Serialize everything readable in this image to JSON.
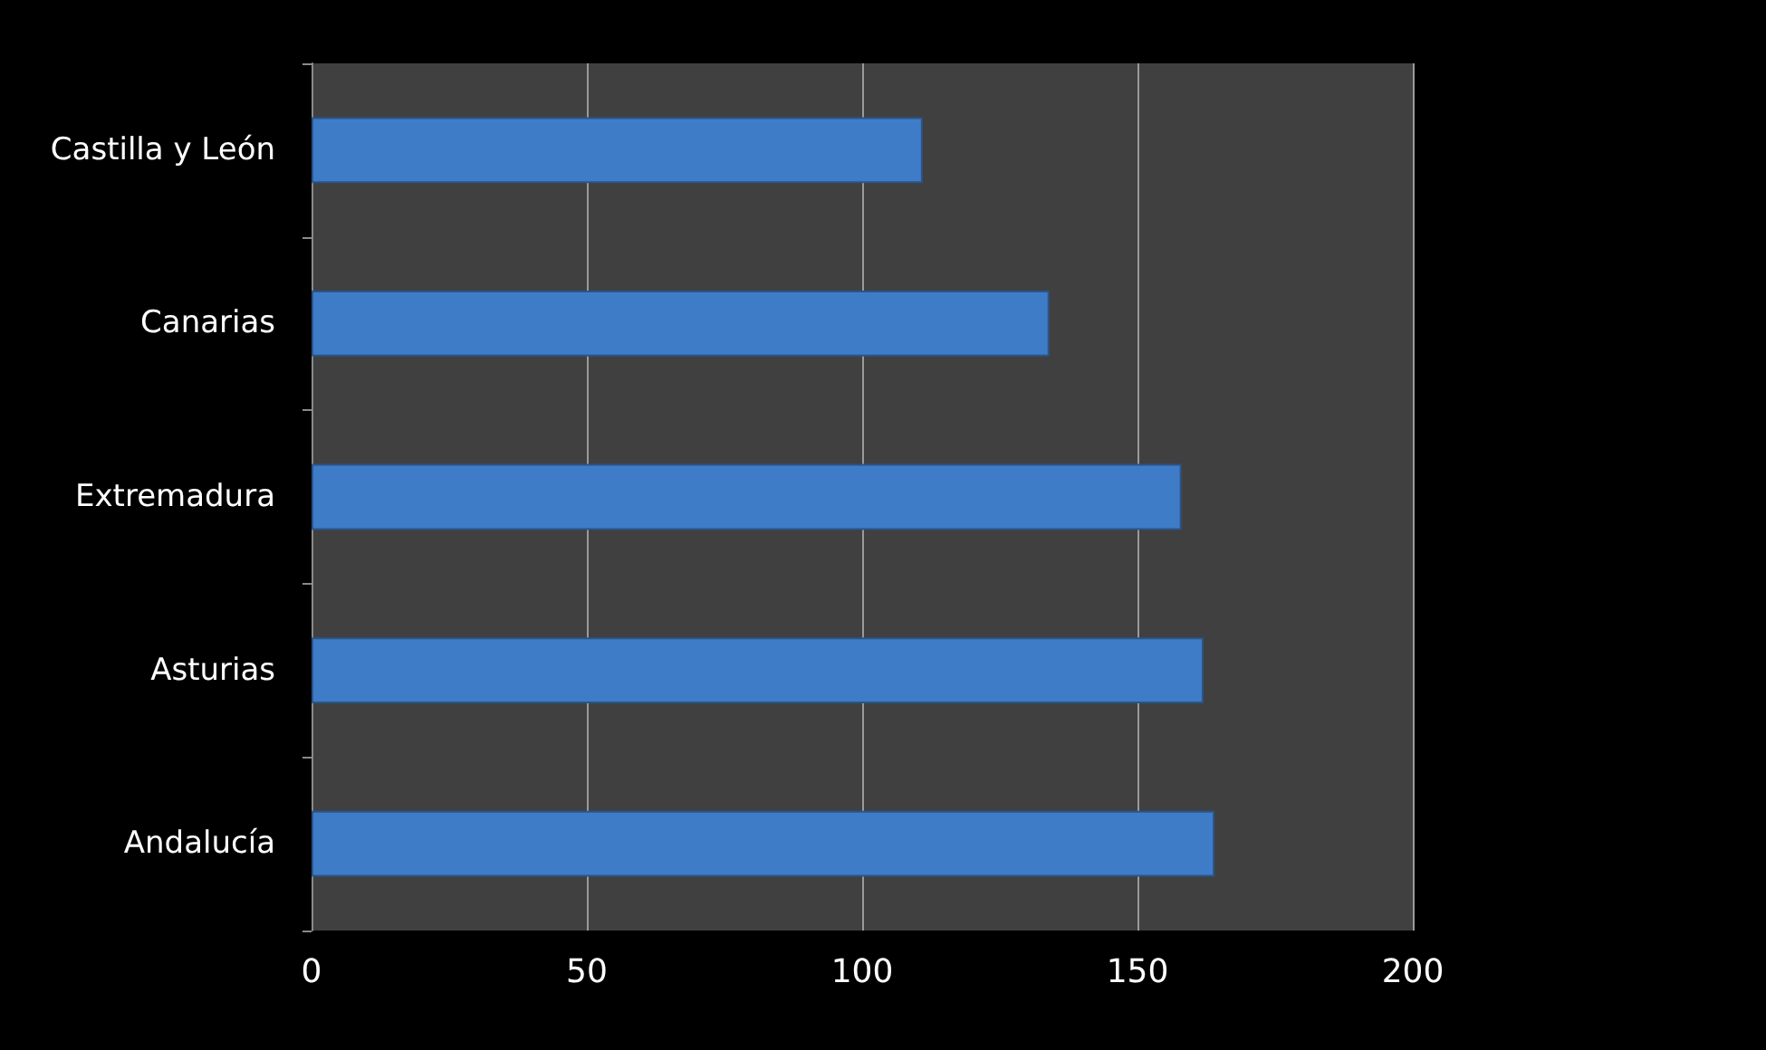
{
  "chart_data": {
    "type": "bar",
    "orientation": "horizontal",
    "categories": [
      "Castilla y León",
      "Canarias",
      "Extremadura",
      "Asturias",
      "Andalucía"
    ],
    "values": [
      111,
      134,
      158,
      162,
      164
    ],
    "color": "#3f7cc8",
    "xlim": [
      0,
      200
    ],
    "xticks": [
      0,
      50,
      100,
      150,
      200
    ],
    "grid": "x"
  }
}
